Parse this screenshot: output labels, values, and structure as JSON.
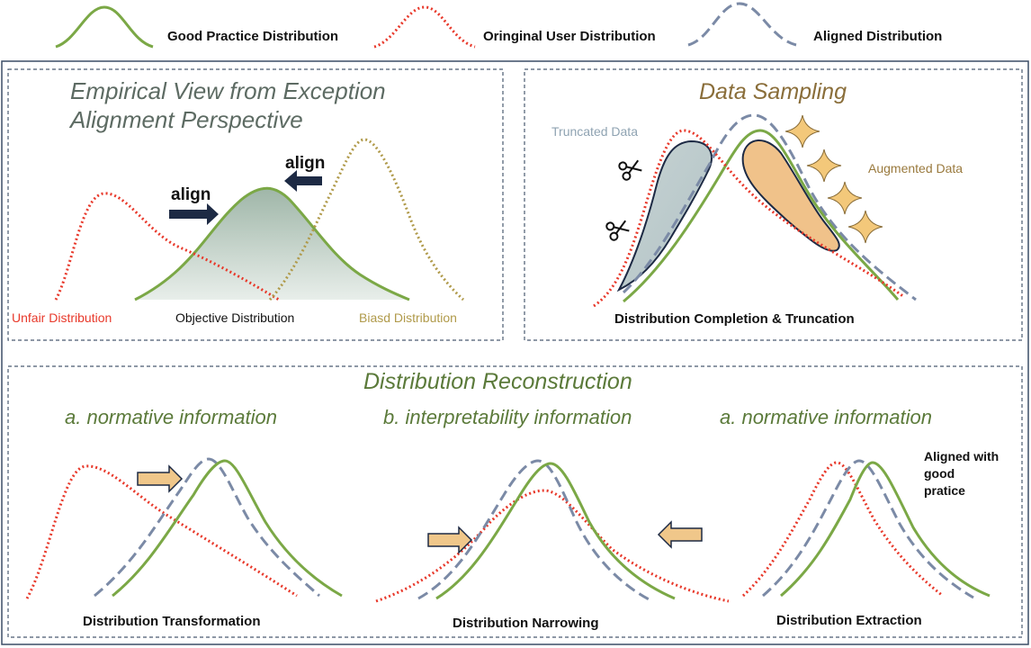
{
  "legend": {
    "good_label": "Good Practice Distribution",
    "user_label": "Oringinal User Distribution",
    "aligned_label": "Aligned Distribution"
  },
  "top_left": {
    "title_line1": "Empirical View from Exception",
    "title_line2": "Alignment Perspective",
    "align_left": "align",
    "align_right": "align",
    "unfair_label": "Unfair Distribution",
    "objective_label": "Objective Distribution",
    "biased_label": "Biasd Distribution"
  },
  "top_right": {
    "title": "Data Sampling",
    "truncated_label": "Truncated Data",
    "augmented_label": "Augmented Data",
    "caption": "Distribution Completion & Truncation"
  },
  "bottom": {
    "title": "Distribution Reconstruction",
    "col1_heading": "a. normative information",
    "col2_heading": "b. interpretability information",
    "col3_heading": "a. normative information",
    "col1_caption": "Distribution Transformation",
    "col2_caption": "Distribution Narrowing",
    "col3_caption": "Distribution Extraction",
    "note_line1": "Aligned with",
    "note_line2": "good",
    "note_line3": "pratice"
  },
  "colors": {
    "good": "#7ba846",
    "user": "#e8392b",
    "aligned": "#7b8aa6",
    "biased": "#b09a4a",
    "arrow_fill": "#f0c78a",
    "dark_arrow": "#1d2a44",
    "star": "#f3c87a",
    "border": "#4a5a70"
  }
}
